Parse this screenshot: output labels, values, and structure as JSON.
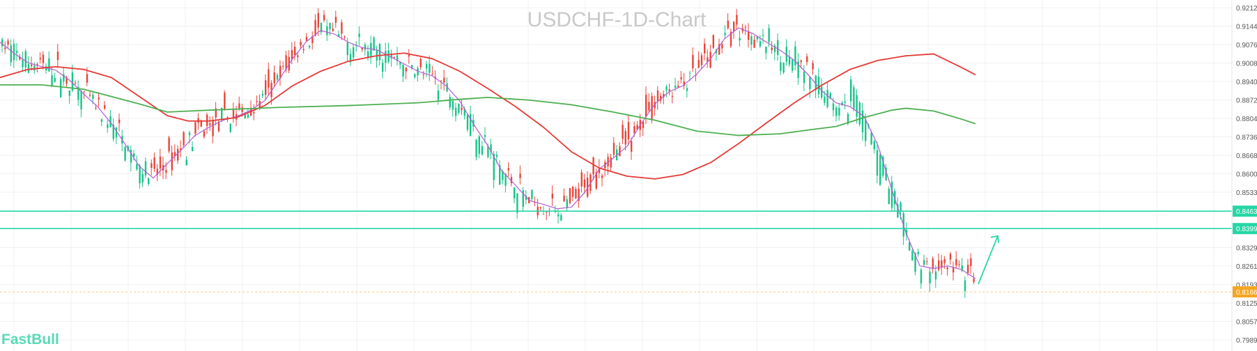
{
  "chart_data": {
    "type": "candlestick",
    "title": "USDCHF-1D-Chart",
    "brand": "FastBull",
    "watermark": "FastBull",
    "y_axis": {
      "position": "right",
      "range": [
        0.7965,
        0.9236
      ],
      "ticks": [
        "0.92123",
        "0.91443",
        "0.90764",
        "0.90085",
        "0.89405",
        "0.88726",
        "0.88047",
        "0.87368",
        "0.86688",
        "0.86009",
        "0.85330",
        "0.84632",
        "0.83991",
        "0.83292",
        "0.82613",
        "0.81933",
        "0.81661",
        "0.81254",
        "0.80575",
        "0.79895"
      ]
    },
    "highlighted_levels": [
      {
        "value": 0.84632,
        "label": "0.84632",
        "color": "#26d6a6"
      },
      {
        "value": 0.83991,
        "label": "0.83991",
        "color": "#26d6a6"
      }
    ],
    "current_price": {
      "value": 0.81661,
      "label": "0.81661",
      "color": "#f5a623"
    },
    "colors": {
      "up": "#e8443a",
      "down": "#17c38a",
      "ma_fast": "#b45cd6",
      "ma_mid": "#e53935",
      "ma_slow": "#4caf50",
      "arrow": "#26d6a6",
      "grid": "#f0f0f0"
    },
    "grid": true,
    "series": [
      {
        "name": "",
        "kind": "ma_fast",
        "x": [
          0,
          20,
          40,
          60,
          80,
          100,
          120,
          140,
          160,
          180,
          200,
          220,
          240,
          260,
          280,
          300,
          320,
          340,
          360,
          380,
          400,
          420,
          440,
          460,
          480,
          500,
          520,
          540,
          560,
          580,
          600,
          620,
          640,
          660,
          680,
          700,
          720,
          740,
          760,
          780,
          800,
          820,
          840,
          860,
          880,
          900,
          920,
          940,
          960,
          980,
          1000,
          1020,
          1040,
          1060,
          1080,
          1100,
          1120,
          1140,
          1160,
          1180,
          1200,
          1220,
          1240,
          1260,
          1280,
          1300,
          1320,
          1340,
          1360,
          1380,
          1400
        ],
        "values": [
          0.9085,
          0.9045,
          0.901,
          0.8995,
          0.8982,
          0.8945,
          0.8895,
          0.8848,
          0.8785,
          0.8708,
          0.8628,
          0.8585,
          0.8638,
          0.8688,
          0.8742,
          0.8772,
          0.8798,
          0.8812,
          0.8835,
          0.887,
          0.8945,
          0.9025,
          0.9088,
          0.9128,
          0.9115,
          0.9085,
          0.9065,
          0.9058,
          0.9032,
          0.9005,
          0.8978,
          0.8962,
          0.8925,
          0.8868,
          0.8782,
          0.8705,
          0.8612,
          0.8558,
          0.8502,
          0.8488,
          0.8472,
          0.8478,
          0.8535,
          0.8618,
          0.8658,
          0.8702,
          0.8785,
          0.8858,
          0.8902,
          0.8925,
          0.8968,
          0.9025,
          0.9098,
          0.9138,
          0.9118,
          0.9085,
          0.9055,
          0.9018,
          0.8965,
          0.8905,
          0.8862,
          0.8848,
          0.8812,
          0.8705,
          0.8542,
          0.8385,
          0.8262,
          0.8252,
          0.8262,
          0.8248,
          0.8215
        ]
      },
      {
        "name": "",
        "kind": "ma_mid",
        "x": [
          0,
          40,
          80,
          120,
          160,
          200,
          240,
          270,
          300,
          340,
          380,
          420,
          460,
          500,
          540,
          580,
          620,
          660,
          700,
          740,
          780,
          820,
          860,
          900,
          940,
          980,
          1020,
          1060,
          1100,
          1140,
          1180,
          1220,
          1260,
          1300,
          1340,
          1380,
          1400
        ],
        "values": [
          0.8955,
          0.8985,
          0.8995,
          0.8985,
          0.8955,
          0.8885,
          0.8815,
          0.8795,
          0.8795,
          0.8808,
          0.8852,
          0.8925,
          0.8978,
          0.9015,
          0.9035,
          0.9045,
          0.9025,
          0.8978,
          0.8915,
          0.8848,
          0.8772,
          0.8682,
          0.8622,
          0.8592,
          0.8582,
          0.8598,
          0.8642,
          0.8712,
          0.8788,
          0.8862,
          0.8928,
          0.8985,
          0.9018,
          0.9035,
          0.9042,
          0.8992,
          0.8965
        ]
      },
      {
        "name": "",
        "kind": "ma_slow",
        "x": [
          0,
          60,
          120,
          200,
          240,
          300,
          400,
          500,
          600,
          660,
          700,
          760,
          820,
          880,
          940,
          1000,
          1060,
          1120,
          1160,
          1200,
          1240,
          1280,
          1300,
          1340,
          1380,
          1400
        ],
        "values": [
          0.8928,
          0.8928,
          0.8912,
          0.8858,
          0.8828,
          0.8835,
          0.8845,
          0.8852,
          0.8862,
          0.8875,
          0.8882,
          0.8872,
          0.8855,
          0.8828,
          0.8798,
          0.8758,
          0.8742,
          0.8748,
          0.8762,
          0.8775,
          0.8808,
          0.8835,
          0.8842,
          0.8832,
          0.8802,
          0.8785
        ]
      }
    ],
    "candles_count": 1400
  }
}
